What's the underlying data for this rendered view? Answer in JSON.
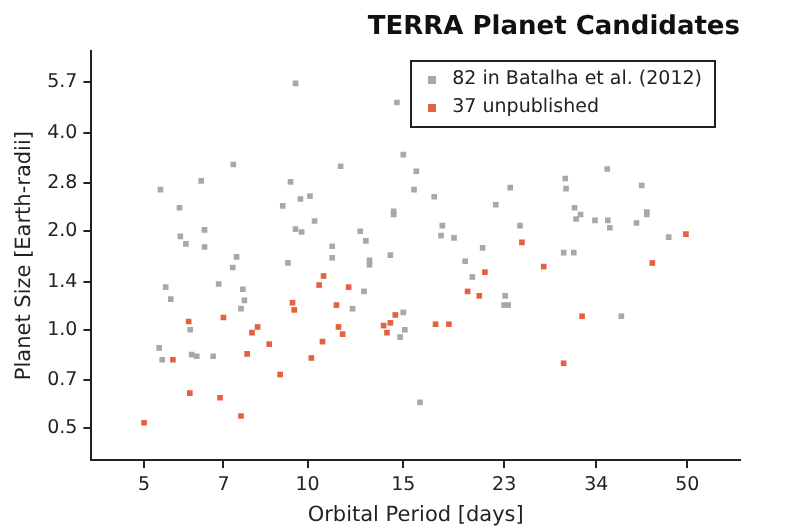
{
  "chart_data": {
    "type": "scatter",
    "title": "TERRA Planet Candidates",
    "xlabel": "Orbital Period [days]",
    "ylabel": "Planet Size [Earth-radii]",
    "log": "xy",
    "xlim": [
      4,
      62.5
    ],
    "ylim": [
      0.4,
      7.1
    ],
    "xticks": [
      5,
      7,
      10,
      15,
      23,
      34,
      50
    ],
    "yticks": [
      0.5,
      0.7,
      {
        "value": 1,
        "label": "1.0"
      },
      1.4,
      {
        "value": 2,
        "label": "2.0"
      },
      2.8,
      {
        "value": 4,
        "label": "4.0"
      },
      5.7
    ],
    "grid": false,
    "legend": "top right",
    "marker": "square",
    "series": [
      {
        "name": "82 in Batalha et al. (2012)",
        "color": "#a8a8a8",
        "x": [
          5.33,
          5.4,
          5.36,
          5.48,
          5.6,
          5.81,
          5.83,
          5.97,
          6.08,
          6.12,
          6.25,
          6.37,
          6.46,
          6.46,
          6.7,
          6.86,
          7.3,
          7.28,
          7.4,
          7.54,
          7.6,
          7.65,
          9.0,
          9.2,
          9.3,
          9.5,
          9.5,
          9.75,
          9.7,
          10.1,
          10.3,
          11.1,
          11.1,
          11.5,
          12.1,
          12.5,
          12.7,
          12.8,
          13.0,
          13.0,
          14.2,
          14.4,
          14.4,
          14.6,
          14.8,
          15.1,
          15.0,
          15.0,
          15.7,
          15.85,
          16.1,
          17.1,
          17.7,
          17.6,
          18.6,
          19.5,
          20.1,
          21.0,
          22.2,
          23.0,
          23.1,
          23.4,
          23.6,
          24.6,
          29.8,
          29.9,
          29.6,
          30.9,
          31.0,
          31.2,
          31.8,
          33.8,
          35.6,
          35.7,
          36.0,
          37.8,
          40.3,
          41.2,
          42.1,
          42.1,
          46.2
        ],
        "values": [
          0.88,
          0.81,
          2.68,
          1.35,
          1.24,
          2.36,
          1.93,
          1.83,
          1.0,
          0.84,
          0.83,
          2.85,
          2.02,
          1.79,
          0.83,
          1.38,
          3.2,
          1.55,
          1.67,
          1.16,
          1.33,
          1.23,
          2.39,
          1.6,
          2.83,
          5.66,
          2.03,
          1.99,
          2.51,
          2.56,
          2.15,
          1.8,
          1.66,
          3.16,
          1.16,
          2.0,
          1.31,
          1.87,
          1.63,
          1.58,
          1.69,
          2.25,
          2.3,
          4.95,
          0.95,
          1.0,
          1.13,
          3.43,
          2.68,
          3.05,
          0.6,
          2.55,
          2.08,
          1.94,
          1.91,
          1.62,
          1.45,
          1.78,
          2.41,
          1.19,
          1.27,
          1.19,
          2.72,
          2.08,
          2.9,
          2.7,
          1.72,
          1.72,
          2.36,
          2.18,
          2.25,
          2.16,
          3.1,
          2.16,
          2.05,
          1.1,
          2.12,
          2.76,
          2.29,
          2.25,
          1.92
        ]
      },
      {
        "name": "37 unpublished",
        "color": "#e5603f",
        "x": [
          5,
          6.04,
          6.07,
          5.65,
          6.9,
          7.0,
          7.54,
          7.74,
          7.9,
          8.09,
          8.5,
          8.9,
          9.38,
          9.45,
          10.16,
          10.5,
          10.7,
          10.65,
          11.3,
          11.4,
          11.6,
          11.9,
          13.8,
          14.0,
          14.2,
          14.5,
          17.2,
          18.2,
          19.7,
          20.7,
          21.2,
          24.8,
          27.2,
          29.6,
          32.0,
          43.1,
          49.7
        ],
        "values": [
          0.52,
          1.06,
          0.64,
          0.81,
          0.62,
          1.09,
          0.545,
          0.844,
          0.98,
          1.02,
          0.904,
          0.73,
          1.21,
          1.15,
          0.82,
          1.37,
          1.46,
          0.92,
          1.19,
          1.02,
          0.97,
          1.35,
          1.03,
          0.98,
          1.05,
          1.11,
          1.04,
          1.04,
          1.31,
          1.27,
          1.5,
          1.85,
          1.56,
          0.79,
          1.1,
          1.6,
          1.96
        ]
      }
    ]
  }
}
